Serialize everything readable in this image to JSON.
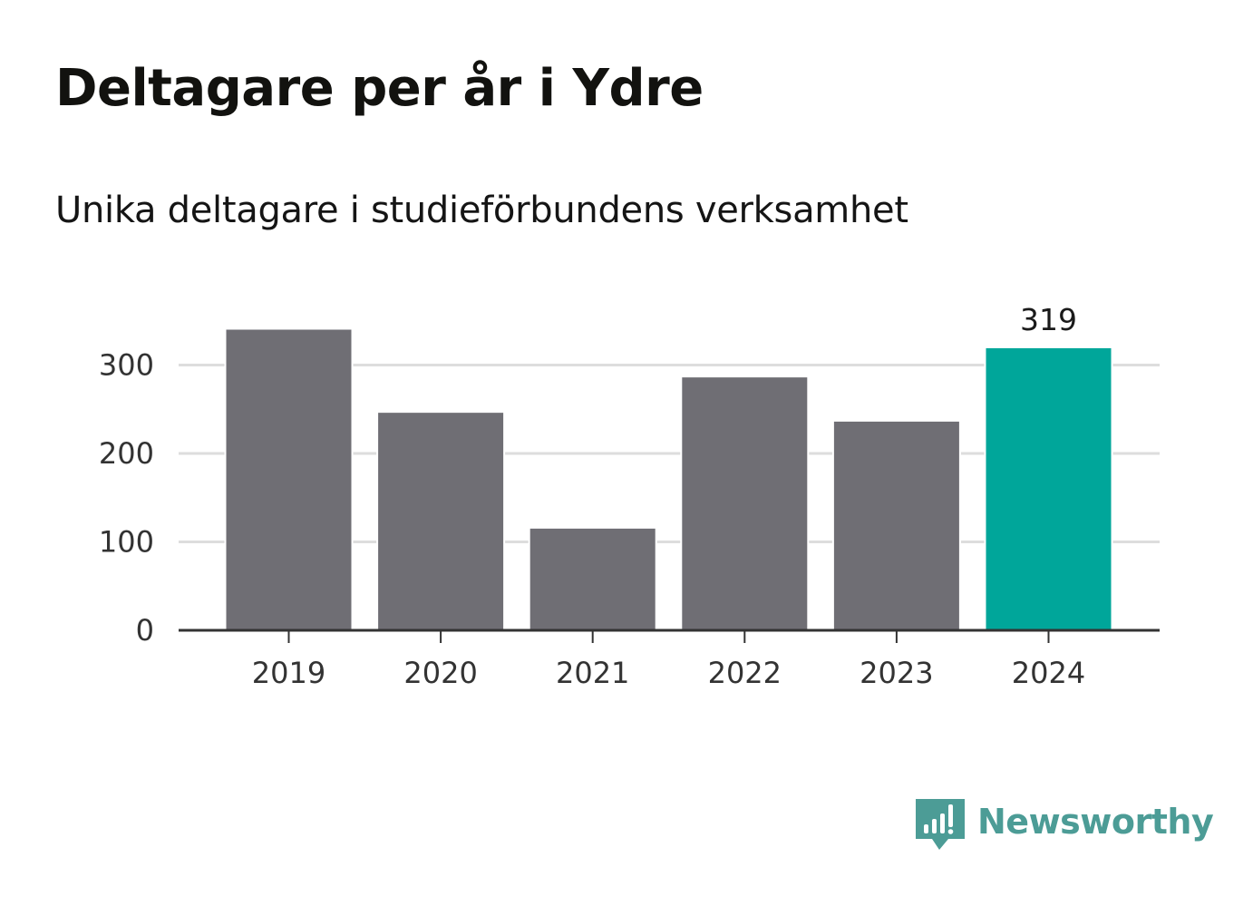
{
  "title": "Deltagare per år i Ydre",
  "subtitle": "Unika deltagare i studieförbundens verksamhet",
  "brand": {
    "name": "Newsworthy",
    "icon": "newsworthy-logo-icon",
    "color": "#4c9c96"
  },
  "chart_data": {
    "type": "bar",
    "categories": [
      "2019",
      "2020",
      "2021",
      "2022",
      "2023",
      "2024"
    ],
    "values": [
      340,
      246,
      115,
      286,
      236,
      319
    ],
    "ylim": [
      0,
      340
    ],
    "yticks": [
      0,
      100,
      200,
      300
    ],
    "grid": true,
    "legend": "none",
    "highlight_index": 5,
    "data_labels": [
      {
        "index": 5,
        "text": "319"
      }
    ],
    "colors": {
      "bar": "#6f6e74",
      "highlight": "#00a69a",
      "grid": "#dddddd",
      "axis": "#333333"
    }
  }
}
